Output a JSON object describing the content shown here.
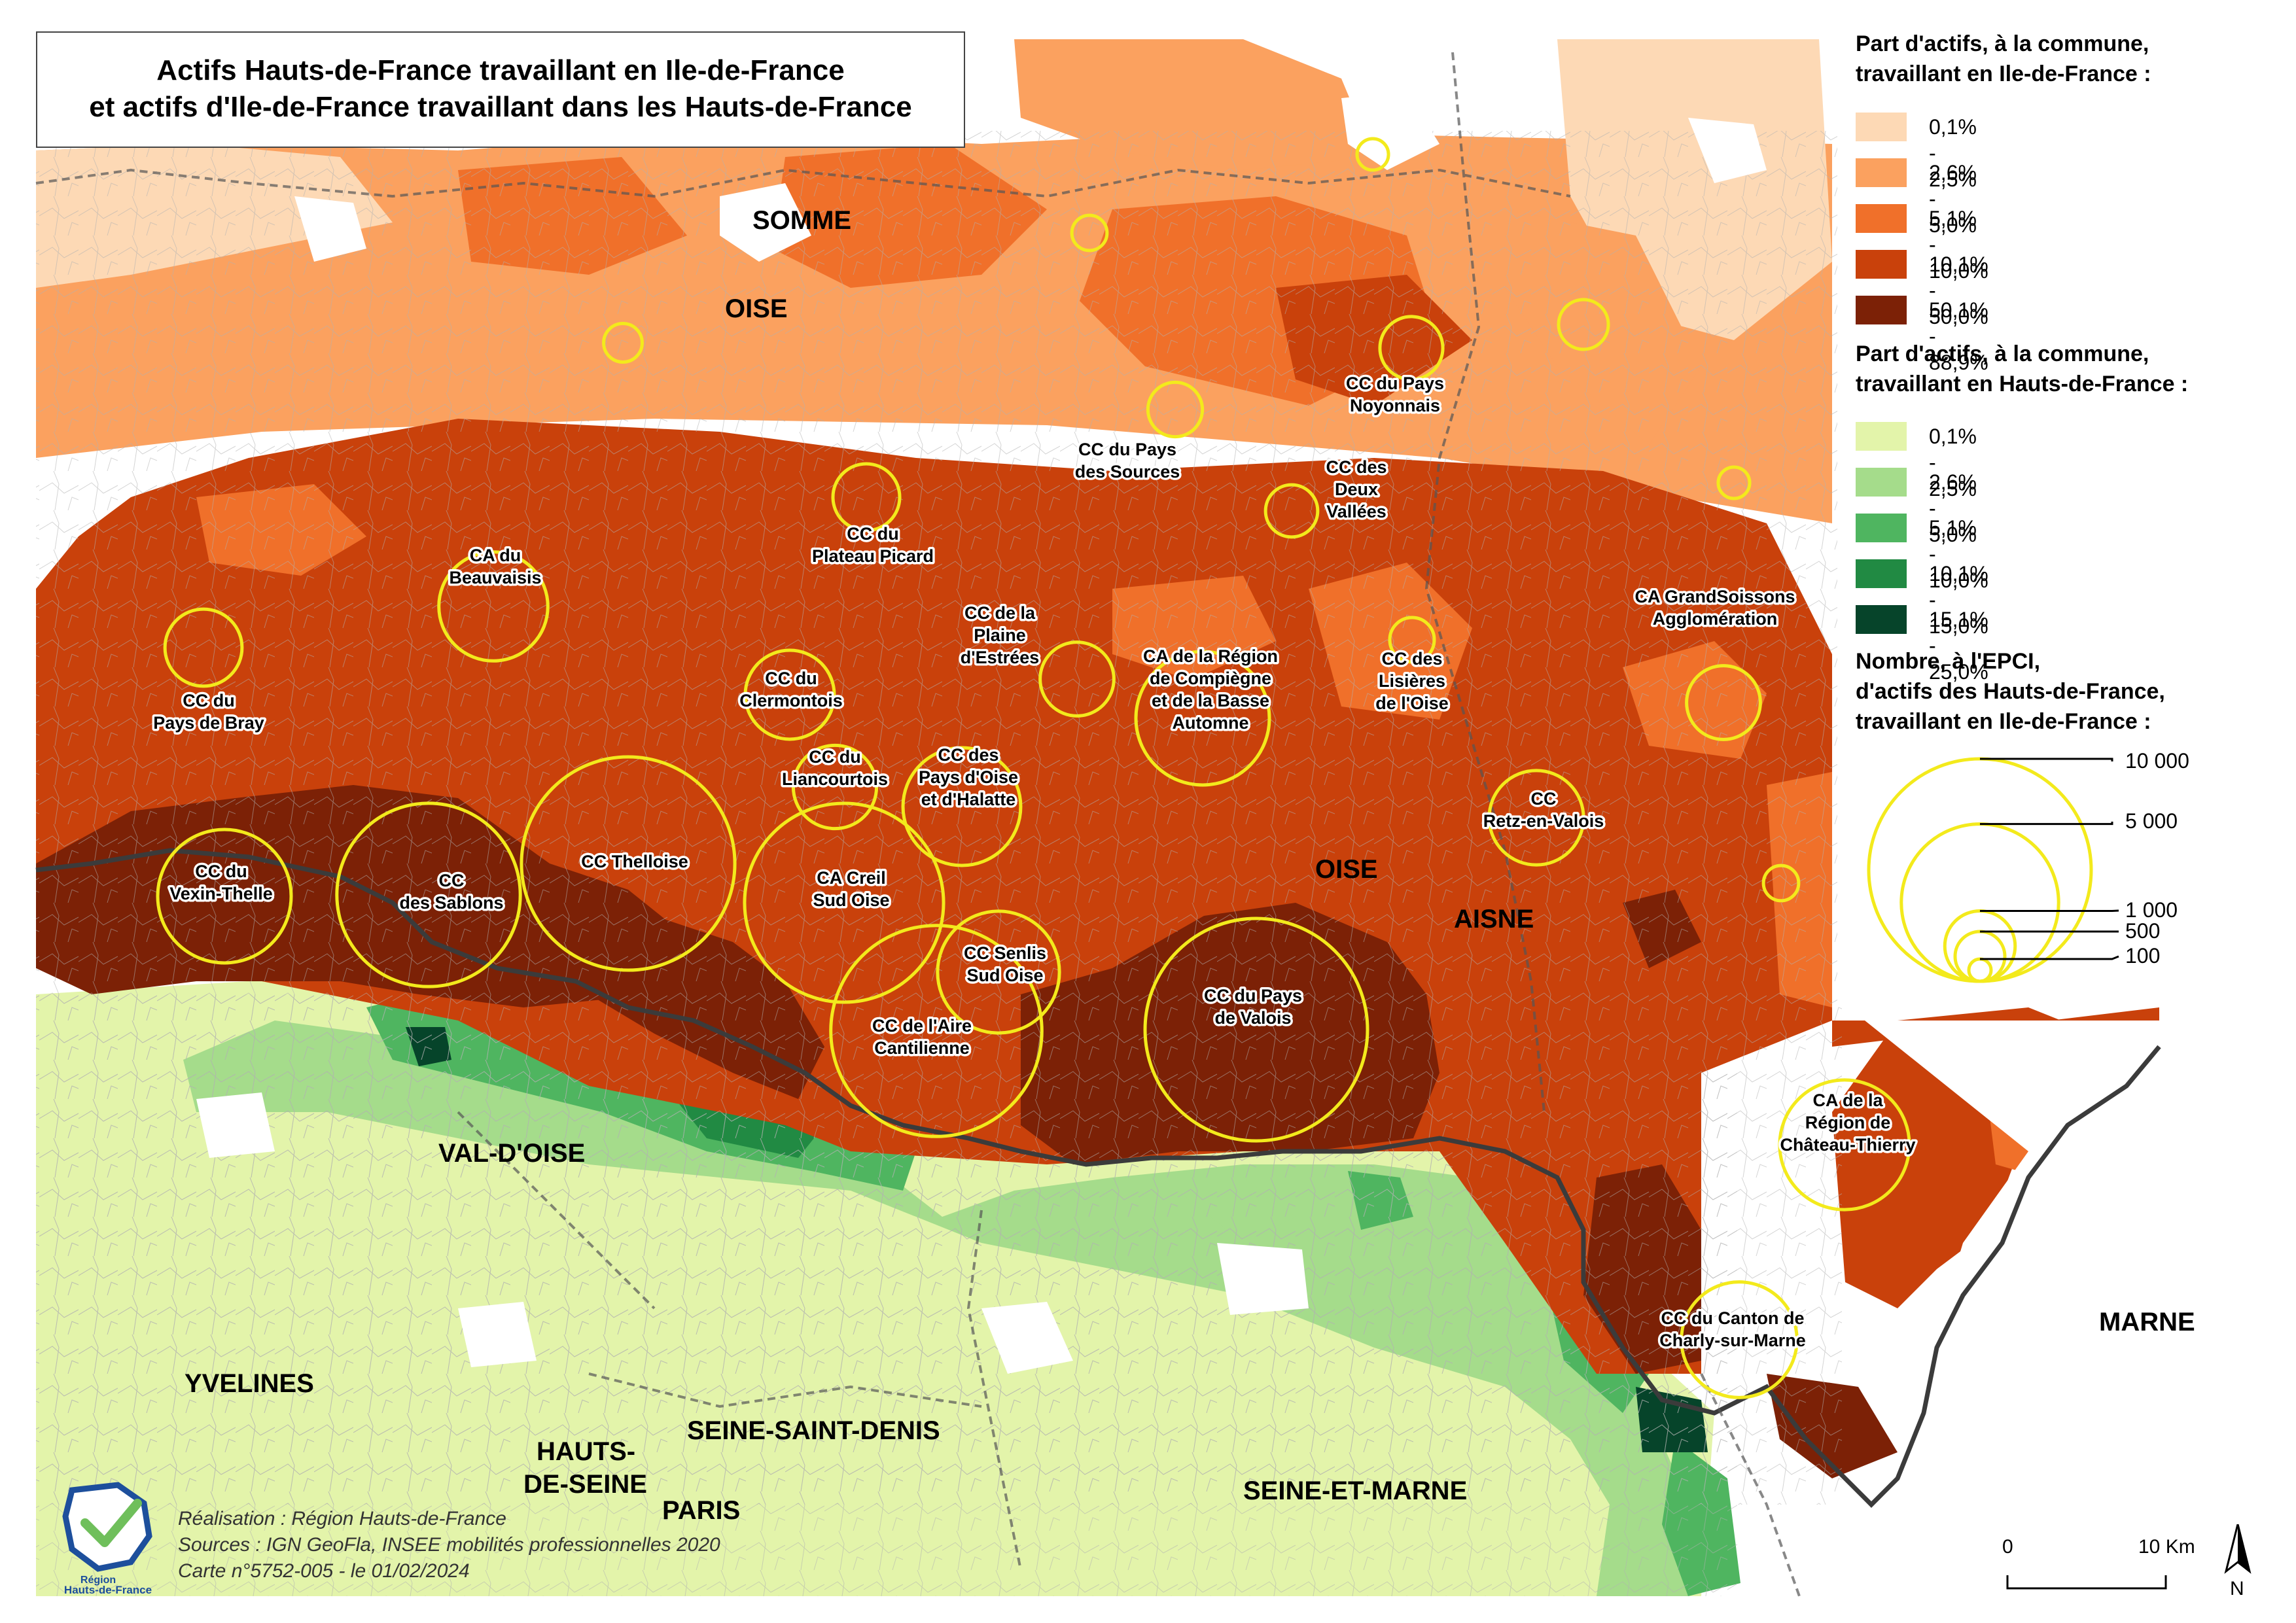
{
  "title": {
    "line1": "Actifs Hauts-de-France travaillant en Ile-de-France",
    "line2": "et actifs d'Ile-de-France travaillant dans les Hauts-de-France"
  },
  "colors": {
    "hdf_classes": [
      "#fdd9b5",
      "#fba15f",
      "#f0702a",
      "#c9410b",
      "#7c2106"
    ],
    "idf_classes": [
      "#e3f4aa",
      "#a5dc8b",
      "#4fb560",
      "#218a43",
      "#06442a"
    ],
    "circle_stroke": "#f3ea1c",
    "no_data": "#ffffff"
  },
  "legend": {
    "hdf_title_line1": "Part d'actifs, à la commune,",
    "hdf_title_line2": "travaillant en Ile-de-France :",
    "hdf_classes": [
      "0,1% - 2,5%",
      "2,6% - 5,0%",
      "5,1% - 10,0%",
      "10,1% - 50,0%",
      "50,1% - 88,9%"
    ],
    "idf_title_line1": "Part d'actifs, à la commune,",
    "idf_title_line2": "travaillant en Hauts-de-France :",
    "idf_classes": [
      "0,1% - 2,5%",
      "2,6% - 5,0%",
      "5,1% - 10,0%",
      "10,1% - 15,0%",
      "15,1% - 25,0%"
    ],
    "epci_title_line1": "Nombre, à l'EPCI,",
    "epci_title_line2": "d'actifs des Hauts-de-France,",
    "epci_title_line3": "travaillant en Ile-de-France :",
    "circle_values": [
      "10 000",
      "5 000",
      "1 000",
      "500",
      "100"
    ]
  },
  "departments": {
    "somme": "SOMME",
    "oise_north": "OISE",
    "oise_center": "OISE",
    "aisne": "AISNE",
    "val_doise": "VAL-D'OISE",
    "yvelines": "YVELINES",
    "hauts_de_seine_1": "HAUTS-",
    "hauts_de_seine_2": "DE-SEINE",
    "seine_saint_denis": "SEINE-SAINT-DENIS",
    "paris": "PARIS",
    "seine_et_marne": "SEINE-ET-MARNE",
    "marne": "MARNE"
  },
  "epci": [
    {
      "lines": [
        "CA du",
        "Beauvaisis"
      ],
      "workers": 2400
    },
    {
      "lines": [
        "CC du",
        "Plateau Picard"
      ],
      "workers": 900
    },
    {
      "lines": [
        "CC du Pays",
        "des Sources"
      ],
      "workers": 600
    },
    {
      "lines": [
        "CC du Pays",
        "Noyonnais"
      ],
      "workers": 800
    },
    {
      "lines": [
        "CC des",
        "Deux",
        "Vallées"
      ],
      "workers": 550
    },
    {
      "lines": [
        "CC du",
        "Pays de Bray"
      ],
      "workers": 1200
    },
    {
      "lines": [
        "CC du",
        "Clermontois"
      ],
      "workers": 1600
    },
    {
      "lines": [
        "CC de la",
        "Plaine",
        "d'Estrées"
      ],
      "workers": 1100
    },
    {
      "lines": [
        "CA de la Région",
        "de Compiègne",
        "et de la Basse",
        "Automne"
      ],
      "workers": 3600
    },
    {
      "lines": [
        "CC des",
        "Lisières",
        "de l'Oise"
      ],
      "workers": 400
    },
    {
      "lines": [
        "CA GrandSoissons",
        "Agglomération"
      ],
      "workers": 1100
    },
    {
      "lines": [
        "CC du",
        "Liancourtois"
      ],
      "workers": 1400
    },
    {
      "lines": [
        "CC des",
        "Pays d'Oise",
        "et d'Halatte"
      ],
      "workers": 2800
    },
    {
      "lines": [
        "CC",
        "Retz-en-Valois"
      ],
      "workers": 1800
    },
    {
      "lines": [
        "CC du",
        "Vexin-Thelle"
      ],
      "workers": 3600
    },
    {
      "lines": [
        "CC",
        "des Sablons"
      ],
      "workers": 6800
    },
    {
      "lines": [
        "CC Thelloise"
      ],
      "workers": 9200
    },
    {
      "lines": [
        "CA Creil",
        "Sud Oise"
      ],
      "workers": 8000
    },
    {
      "lines": [
        "CC Senlis",
        "Sud Oise"
      ],
      "workers": 3000
    },
    {
      "lines": [
        "CC de l'Aire",
        "Cantilienne"
      ],
      "workers": 9000
    },
    {
      "lines": [
        "CC du Pays",
        "de Valois"
      ],
      "workers": 10000
    },
    {
      "lines": [
        "CA de la",
        "Région de",
        "Château-Thierry"
      ],
      "workers": 3400
    },
    {
      "lines": [
        "CC du Canton de",
        "Charly-sur-Marne"
      ],
      "workers": 2700
    },
    {
      "lines": [],
      "workers": 200
    },
    {
      "lines": [],
      "workers": 250
    },
    {
      "lines": [],
      "workers": 300
    },
    {
      "lines": [],
      "workers": 500
    },
    {
      "lines": [],
      "workers": 200
    },
    {
      "lines": [],
      "workers": 250
    }
  ],
  "credits": {
    "line1": "Réalisation : Région Hauts-de-France",
    "line2": "Sources : IGN GeoFla, INSEE mobilités professionnelles 2020",
    "line3": "Carte n°5752-005 - le 01/02/2024"
  },
  "logo": {
    "line1": "Région",
    "line2": "Hauts-de-France"
  },
  "scale": {
    "start": "0",
    "end": "10 Km",
    "north": "N"
  }
}
